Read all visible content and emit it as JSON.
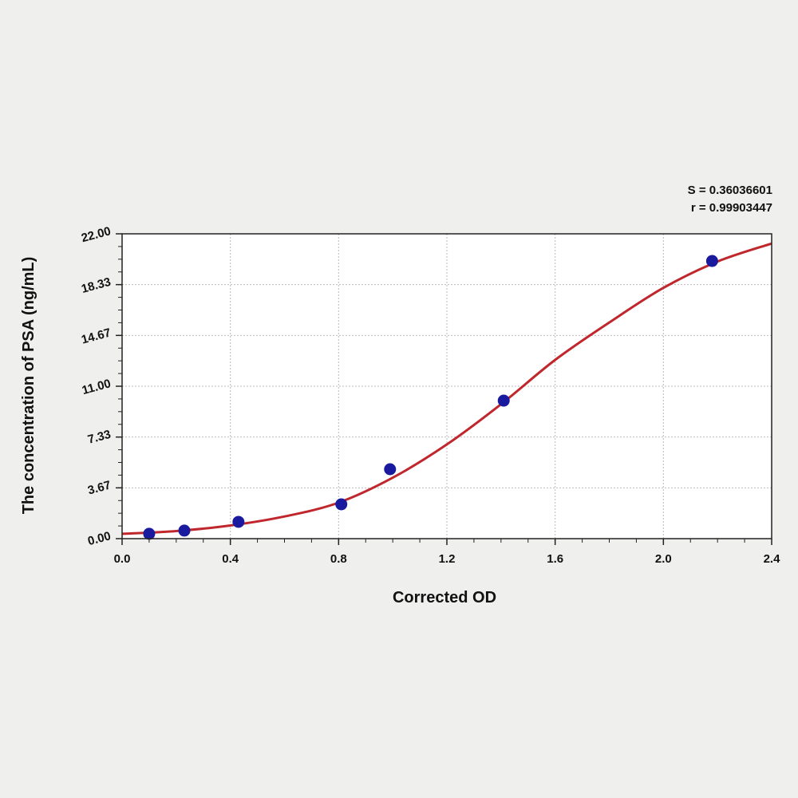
{
  "chart_data": {
    "type": "scatter",
    "title": "",
    "xlabel": "Corrected OD",
    "ylabel": "The concentration of PSA (ng/mL)",
    "xlim": [
      0,
      2.4
    ],
    "ylim": [
      0,
      22
    ],
    "x_ticks": [
      "0.0",
      "0.4",
      "0.8",
      "1.2",
      "1.6",
      "2.0",
      "2.4"
    ],
    "y_ticks": [
      "0.00",
      "3.67",
      "7.33",
      "11.00",
      "14.67",
      "18.33",
      "22.00"
    ],
    "grid": true,
    "annotations": [
      "S = 0.36036601",
      "r = 0.99903447"
    ],
    "series": [
      {
        "type": "scatter",
        "color": "#1a1a9e",
        "x": [
          0.1,
          0.23,
          0.43,
          0.81,
          0.99,
          1.41,
          2.18
        ],
        "y": [
          0.35,
          0.58,
          1.21,
          2.48,
          5.01,
          9.96,
          20.04
        ]
      },
      {
        "type": "line",
        "color": "#c0272d",
        "x": [
          0,
          0.2,
          0.4,
          0.6,
          0.8,
          1.0,
          1.2,
          1.4,
          1.6,
          1.8,
          2.0,
          2.2,
          2.4
        ],
        "y": [
          0.35,
          0.55,
          0.95,
          1.6,
          2.6,
          4.4,
          6.8,
          9.7,
          12.9,
          15.6,
          18.1,
          20.0,
          21.3
        ]
      }
    ]
  }
}
